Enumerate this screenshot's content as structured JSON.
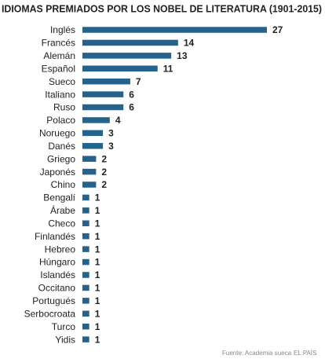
{
  "chart_data": {
    "type": "bar",
    "orientation": "horizontal",
    "title": "IDIOMAS PREMIADOS POR LOS NOBEL DE LITERATURA (1901-2015)",
    "categories": [
      "Inglés",
      "Francés",
      "Alemán",
      "Español",
      "Sueco",
      "Italiano",
      "Ruso",
      "Polaco",
      "Noruego",
      "Danés",
      "Griego",
      "Japonés",
      "Chino",
      "Bengalí",
      "Árabe",
      "Checo",
      "Finlandés",
      "Hebreo",
      "Húngaro",
      "Islandés",
      "Occitano",
      "Portugués",
      "Serbocroata",
      "Turco",
      "Yidis"
    ],
    "values": [
      27,
      14,
      13,
      11,
      7,
      6,
      6,
      4,
      3,
      3,
      2,
      2,
      2,
      1,
      1,
      1,
      1,
      1,
      1,
      1,
      1,
      1,
      1,
      1,
      1
    ],
    "color": "#25638f",
    "source": "Fuente: Academia sueca",
    "publisher": "EL PAÍS"
  }
}
